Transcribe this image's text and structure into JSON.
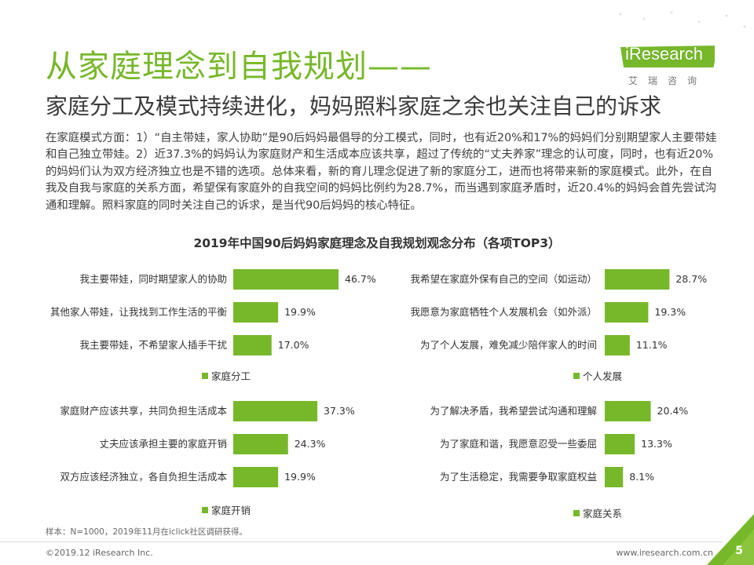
{
  "header": {
    "title": "从家庭理念到自我规划——",
    "subtitle": "家庭分工及模式持续进化，妈妈照料家庭之余也关注自己的诉求",
    "logo_text": "iResearch",
    "logo_cn": "艾瑞咨询"
  },
  "paragraph": "在家庭模式方面：1）“自主带娃，家人协助”是90后妈妈最倡导的分工模式，同时，也有近20%和17%的妈妈们分别期望家人主要带娃和自己独立带娃。2）近37.3%的妈妈认为家庭财产和生活成本应该共享，超过了传统的“丈夫养家”理念的认可度，同时，也有近20%的妈妈们认为双方经济独立也是不错的选项。总体来看，新的育儿理念促进了新的家庭分工，进而也将带来新的家庭模式。此外，在自我及自我与家庭的关系方面，希望保有家庭外的自我空间的妈妈比例约为28.7%，而当遇到家庭矛盾时，近20.4%的妈妈会首先尝试沟通和理解。照料家庭的同时关注自己的诉求，是当代90后妈妈的核心特征。",
  "colors": {
    "accent": "#77b82a",
    "text": "#333333"
  },
  "chart_title": "2019年中国90后妈妈家庭理念及自我规划观念分布（各项TOP3）",
  "chart_data": [
    {
      "type": "bar",
      "orientation": "horizontal",
      "legend": "家庭分工",
      "categories": [
        "我主要带娃，同时期望家人的协助",
        "其他家人带娃，让我找到工作生活的平衡",
        "我主要带娃，不希望家人插手干扰"
      ],
      "values": [
        46.7,
        19.9,
        17.0
      ],
      "labels": [
        "46.7%",
        "19.9%",
        "17.0%"
      ]
    },
    {
      "type": "bar",
      "orientation": "horizontal",
      "legend": "个人发展",
      "categories": [
        "我希望在家庭外保有自己的空间（如运动）",
        "我愿意为家庭牺牲个人发展机会（如外派）",
        "为了个人发展，难免减少陪伴家人的时间"
      ],
      "values": [
        28.7,
        19.3,
        11.1
      ],
      "labels": [
        "28.7%",
        "19.3%",
        "11.1%"
      ]
    },
    {
      "type": "bar",
      "orientation": "horizontal",
      "legend": "家庭开销",
      "categories": [
        "家庭财产应该共享，共同负担生活成本",
        "丈夫应该承担主要的家庭开销",
        "双方应该经济独立，各自负担生活成本"
      ],
      "values": [
        37.3,
        24.3,
        19.9
      ],
      "labels": [
        "37.3%",
        "24.3%",
        "19.9%"
      ]
    },
    {
      "type": "bar",
      "orientation": "horizontal",
      "legend": "家庭关系",
      "categories": [
        "为了解决矛盾，我希望尝试沟通和理解",
        "为了家庭和谐，我愿意忍受一些委屈",
        "为了生活稳定，我需要争取家庭权益"
      ],
      "values": [
        20.4,
        13.3,
        8.1
      ],
      "labels": [
        "20.4%",
        "13.3%",
        "8.1%"
      ]
    }
  ],
  "footer": {
    "footnote": "样本：N=1000，2019年11月在iclick社区调研获得。",
    "copyright": "©2019.12 iResearch Inc.",
    "website": "www.iresearch.com.cn",
    "page_number": "5"
  }
}
